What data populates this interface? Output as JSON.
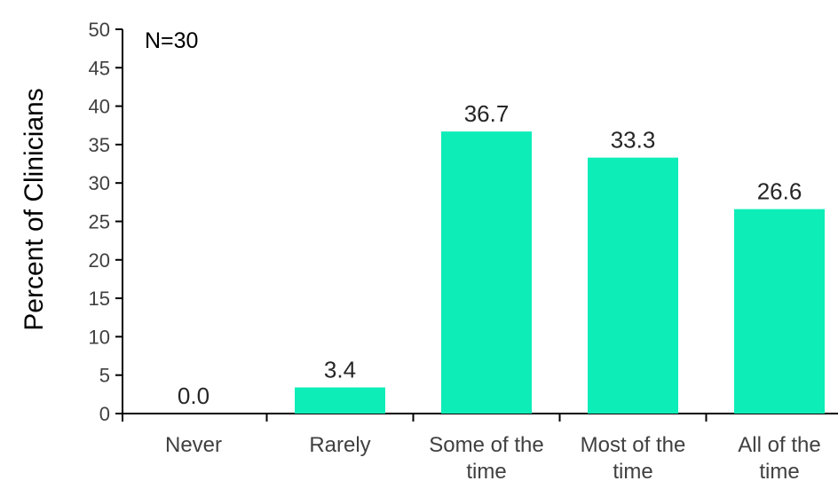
{
  "chart_data": {
    "type": "bar",
    "categories": [
      [
        "Never"
      ],
      [
        "Rarely"
      ],
      [
        "Some of the",
        "time"
      ],
      [
        "Most of the",
        "time"
      ],
      [
        "All of the",
        "time"
      ]
    ],
    "values": [
      0.0,
      3.4,
      36.7,
      33.3,
      26.6
    ],
    "data_labels": [
      "0.0",
      "3.4",
      "36.7",
      "33.3",
      "26.6"
    ],
    "ylabel": "Percent of Clinicians",
    "xlabel": "",
    "ylim": [
      0,
      50
    ],
    "yticks": [
      0,
      5,
      10,
      15,
      20,
      25,
      30,
      35,
      40,
      45,
      50
    ],
    "annotation": "N=30",
    "grid": false,
    "bar_color": "#0DEDB8",
    "axis_color": "#000000"
  }
}
